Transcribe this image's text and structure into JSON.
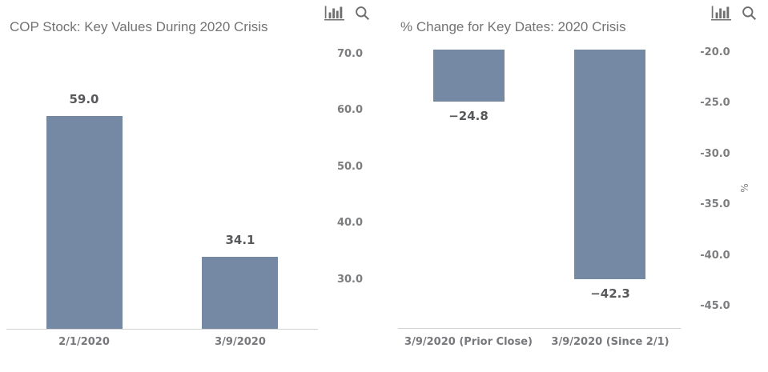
{
  "page": {
    "background": "#ffffff"
  },
  "toolbar": {
    "chart_type_icon": "bar-chart",
    "zoom_icon": "magnifier",
    "icon_color": "#6f6f6f"
  },
  "colors": {
    "bar_fill": "#7589a4",
    "title_text": "#737373",
    "tick_text": "#7c7d7f",
    "value_text": "#58595b",
    "axis_line": "#d2d2d2"
  },
  "chart_data": [
    {
      "type": "bar",
      "title": "COP Stock: Key Values During 2020 Crisis",
      "categories": [
        "2/1/2020",
        "3/9/2020"
      ],
      "values": [
        59.0,
        34.1
      ],
      "bar_labels": [
        "59.0",
        "34.1"
      ],
      "bar_label_position": "above",
      "xlabel": "",
      "ylabel": "",
      "yticks": [
        70.0,
        60.0,
        50.0,
        40.0,
        30.0
      ],
      "ytick_labels": [
        "70.0",
        "60.0",
        "50.0",
        "40.0",
        "30.0"
      ],
      "ylim": [
        21.3,
        71.8
      ],
      "yaxis_side": "right",
      "grid": false,
      "legend": false,
      "bar_color": "#7589a4",
      "axis_line_color": "#d2d2d2"
    },
    {
      "type": "bar",
      "title": "% Change for Key Dates: 2020 Crisis",
      "categories": [
        "3/9/2020 (Prior Close)",
        "3/9/2020 (Since 2/1)"
      ],
      "values": [
        -24.8,
        -42.3
      ],
      "bar_labels": [
        "−24.8",
        "−42.3"
      ],
      "bar_label_position": "below",
      "xlabel": "",
      "ylabel": "%",
      "yticks": [
        -20.0,
        -25.0,
        -30.0,
        -35.0,
        -40.0,
        -45.0
      ],
      "ytick_labels": [
        "-20.0",
        "-25.0",
        "-30.0",
        "-35.0",
        "-40.0",
        "-45.0"
      ],
      "ylim": [
        -47.1,
        -19.7
      ],
      "yaxis_side": "right",
      "grid": false,
      "legend": false,
      "bar_color": "#7589a4",
      "axis_line_color": "#d2d2d2"
    }
  ]
}
